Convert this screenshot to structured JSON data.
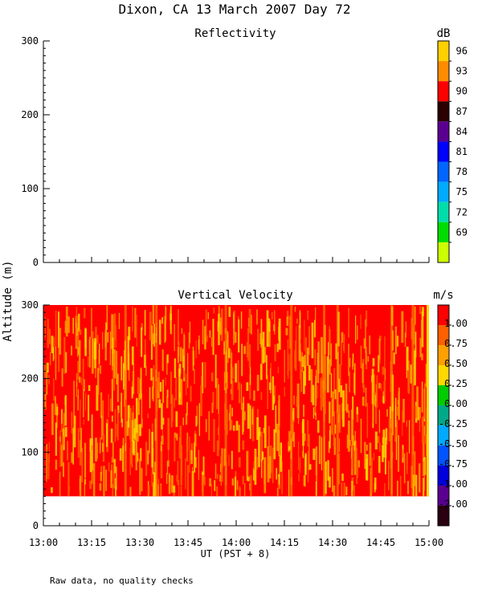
{
  "figure": {
    "title": "Dixon, CA 13 March 2007  Day  72",
    "y_axis_label": "Altitude (m)",
    "x_axis_label": "UT  (PST + 8)",
    "footnote": "Raw data, no quality checks"
  },
  "chart_data": [
    {
      "type": "heatmap",
      "title": "Reflectivity",
      "colorbar_unit": "dB",
      "colorbar_ticks": [
        "96",
        "93",
        "90",
        "87",
        "84",
        "81",
        "78",
        "75",
        "72",
        "69"
      ],
      "colorbar_colors": [
        "#ffd000",
        "#ff8c00",
        "#ff0000",
        "#2a0000",
        "#5a0090",
        "#0000ff",
        "#0066ff",
        "#00aaff",
        "#00ddaa",
        "#00dd00",
        "#ccff00"
      ],
      "x_ticks": [
        "13:00",
        "13:15",
        "13:30",
        "13:45",
        "14:00",
        "14:15",
        "14:30",
        "14:45",
        "15:00"
      ],
      "xlim": [
        "13:00",
        "15:00"
      ],
      "y_ticks": [
        0,
        100,
        200,
        300
      ],
      "ylim": [
        0,
        300
      ],
      "values": []
    },
    {
      "type": "heatmap",
      "title": "Vertical Velocity",
      "colorbar_unit": "m/s",
      "colorbar_ticks": [
        "1.00",
        "0.75",
        "0.50",
        "0.25",
        "0.00",
        "-0.25",
        "-0.50",
        "-0.75",
        "-1.00",
        "-2.00"
      ],
      "colorbar_colors": [
        "#ff0000",
        "#ff6000",
        "#ffa000",
        "#ffd800",
        "#00cc00",
        "#00aa88",
        "#00aaff",
        "#0055ff",
        "#0000dd",
        "#5a0090",
        "#2a0010"
      ],
      "x_ticks": [
        "13:00",
        "13:15",
        "13:30",
        "13:45",
        "14:00",
        "14:15",
        "14:30",
        "14:45",
        "15:00"
      ],
      "xlim": [
        "13:00",
        "15:00"
      ],
      "y_ticks": [
        0,
        100,
        200,
        300
      ],
      "ylim": [
        0,
        300
      ],
      "data_altitude_range": [
        40,
        300
      ],
      "dominant_value_range": [
        0.75,
        1.25
      ],
      "secondary_value_range": [
        0.25,
        0.75
      ]
    }
  ]
}
